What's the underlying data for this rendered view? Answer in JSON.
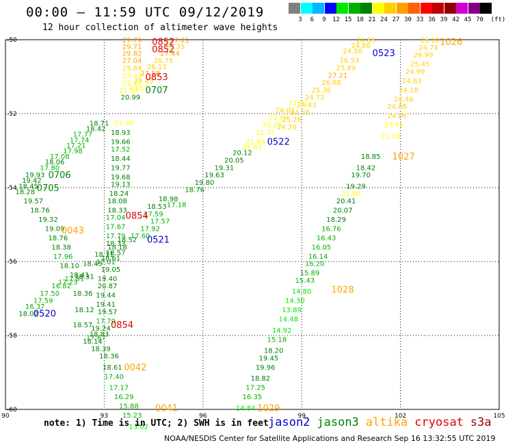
{
  "title": "00:00 – 11:59 UTC 09/12/2019",
  "subtitle": "12 hour collection of altimeter wave heights",
  "scale": {
    "unit": "(ft)",
    "bins": [
      {
        "label": "3",
        "color": "#808080"
      },
      {
        "label": "6",
        "color": "#00ffff"
      },
      {
        "label": "9",
        "color": "#00b8ff"
      },
      {
        "label": "12",
        "color": "#0000ff"
      },
      {
        "label": "15",
        "color": "#00e800"
      },
      {
        "label": "18",
        "color": "#00b000"
      },
      {
        "label": "21",
        "color": "#008000"
      },
      {
        "label": "24",
        "color": "#ffff00"
      },
      {
        "label": "27",
        "color": "#ffd000"
      },
      {
        "label": "30",
        "color": "#ffa000"
      },
      {
        "label": "33",
        "color": "#ff6000"
      },
      {
        "label": "36",
        "color": "#ff0000"
      },
      {
        "label": "39",
        "color": "#c00000"
      },
      {
        "label": "42",
        "color": "#900000"
      },
      {
        "label": "45",
        "color": "#d000d0"
      },
      {
        "label": "70",
        "color": "#800080"
      },
      {
        "label": "",
        "color": "#000000"
      }
    ]
  },
  "axes": {
    "lon_ticks": [
      "90",
      "93",
      "96",
      "99",
      "102",
      "105"
    ],
    "lat_ticks": [
      "-50",
      "-52",
      "-54",
      "-56",
      "-58",
      "-60"
    ],
    "lon_range": [
      90,
      105
    ],
    "lat_range": [
      -60,
      -50
    ]
  },
  "note": "note: 1) Time is in UTC; 2) SWH is in feet",
  "legend": [
    {
      "label": "jason2",
      "color": "#0000cc"
    },
    {
      "label": "jason3",
      "color": "#008000"
    },
    {
      "label": "altika",
      "color": "#ffa000"
    },
    {
      "label": "cryosat",
      "color": "#e00000"
    },
    {
      "label": "s3a",
      "color": "#990000"
    }
  ],
  "footer": "NOAA/NESDIS Center for Satellite Applications and Research   Sep 16 13:32:55 UTC 2019",
  "time_labels": [
    {
      "text": "0852",
      "lon": 94.45,
      "lat": -50.05,
      "color": "#e00000"
    },
    {
      "text": "0852",
      "lon": 94.45,
      "lat": -50.25,
      "color": "#e00000"
    },
    {
      "text": "0853",
      "lon": 94.25,
      "lat": -51.0,
      "color": "#e00000"
    },
    {
      "text": "0707",
      "lon": 94.25,
      "lat": -51.35,
      "color": "#008000"
    },
    {
      "text": "0706",
      "lon": 91.3,
      "lat": -53.65,
      "color": "#008000"
    },
    {
      "text": "0705",
      "lon": 90.95,
      "lat": -54.0,
      "color": "#008000"
    },
    {
      "text": "0043",
      "lon": 91.7,
      "lat": -55.15,
      "color": "#ffa000"
    },
    {
      "text": "0854",
      "lon": 93.65,
      "lat": -54.75,
      "color": "#e00000"
    },
    {
      "text": "0521",
      "lon": 94.3,
      "lat": -55.4,
      "color": "#0000cc"
    },
    {
      "text": "0520",
      "lon": 90.85,
      "lat": -57.4,
      "color": "#0000cc"
    },
    {
      "text": "0854",
      "lon": 93.2,
      "lat": -57.7,
      "color": "#e00000"
    },
    {
      "text": "0042",
      "lon": 93.6,
      "lat": -58.85,
      "color": "#ffa000"
    },
    {
      "text": "0041",
      "lon": 94.55,
      "lat": -59.95,
      "color": "#ffa000"
    },
    {
      "text": "0522",
      "lon": 97.95,
      "lat": -52.75,
      "color": "#0000cc"
    },
    {
      "text": "0523",
      "lon": 101.15,
      "lat": -50.35,
      "color": "#0000cc"
    },
    {
      "text": "1026",
      "lon": 103.2,
      "lat": -50.05,
      "color": "#ffa000"
    },
    {
      "text": "1027",
      "lon": 101.75,
      "lat": -53.15,
      "color": "#ffa000"
    },
    {
      "text": "1028",
      "lon": 99.9,
      "lat": -56.75,
      "color": "#ffa000"
    },
    {
      "text": "1029",
      "lon": 97.65,
      "lat": -59.95,
      "color": "#ffa000"
    }
  ],
  "tracks": [
    {
      "name": "track-cryosat-upper",
      "start": [
        93.75,
        -50.5
      ],
      "end": [
        95.1,
        -50.0
      ],
      "values": [
        "27.79",
        "29.71",
        "29.82",
        "27.04",
        "25.84",
        "23.43",
        "22.21",
        "21.53",
        "20.99"
      ],
      "pos": [
        [
          93.55,
          -50.0
        ],
        [
          93.55,
          -50.18
        ],
        [
          93.55,
          -50.36
        ],
        [
          93.55,
          -50.56
        ],
        [
          93.55,
          -50.76
        ],
        [
          93.55,
          -50.96
        ],
        [
          93.55,
          -51.16
        ],
        [
          93.45,
          -51.36
        ],
        [
          93.5,
          -51.55
        ]
      ]
    },
    {
      "name": "track-cryosat-upper-b",
      "values": [
        "27.21",
        "25.35",
        "27.44",
        "26.75",
        "26.13",
        "27.58",
        "25.45",
        "23.07"
      ],
      "pos": [
        [
          95.0,
          -50.0
        ],
        [
          94.85,
          -50.18
        ],
        [
          94.7,
          -50.36
        ],
        [
          94.5,
          -50.56
        ],
        [
          94.3,
          -50.72
        ],
        [
          94.1,
          -50.9
        ],
        [
          93.9,
          -51.1
        ],
        [
          93.75,
          -51.3
        ]
      ]
    },
    {
      "name": "track-jason3-west",
      "values": [
        "18.71",
        "18.42",
        "17.77",
        "17.74",
        "17.21",
        "17.98",
        "17.08",
        "18.06",
        "17.80",
        "19.93",
        "19.42",
        "18.45",
        "18.28"
      ],
      "pos": [
        [
          92.55,
          -52.25
        ],
        [
          92.45,
          -52.4
        ],
        [
          92.05,
          -52.55
        ],
        [
          91.95,
          -52.7
        ],
        [
          91.85,
          -52.85
        ],
        [
          91.75,
          -53.0
        ],
        [
          91.35,
          -53.15
        ],
        [
          91.2,
          -53.3
        ],
        [
          91.05,
          -53.45
        ],
        [
          90.6,
          -53.65
        ],
        [
          90.5,
          -53.8
        ],
        [
          90.4,
          -53.95
        ],
        [
          90.3,
          -54.1
        ]
      ]
    },
    {
      "name": "track-jason3-west-b",
      "values": [
        "19.57",
        "18.76",
        "19.32",
        "19.09",
        "18.76",
        "18.38",
        "17.96",
        "18.10",
        "18.41",
        "17.51",
        "17.23",
        "16.82",
        "17.50",
        "17.59",
        "16.37",
        "18.02"
      ],
      "pos": [
        [
          90.55,
          -54.35
        ],
        [
          90.75,
          -54.6
        ],
        [
          91.0,
          -54.85
        ],
        [
          91.2,
          -55.1
        ],
        [
          91.3,
          -55.35
        ],
        [
          91.4,
          -55.6
        ],
        [
          91.45,
          -55.85
        ],
        [
          91.65,
          -56.1
        ],
        [
          91.95,
          -56.35
        ],
        [
          91.8,
          -56.45
        ],
        [
          91.6,
          -56.55
        ],
        [
          91.4,
          -56.65
        ],
        [
          91.05,
          -56.85
        ],
        [
          90.85,
          -57.05
        ],
        [
          90.6,
          -57.2
        ],
        [
          90.4,
          -57.4
        ]
      ]
    },
    {
      "name": "track-jason3-mid",
      "values": [
        "21.39",
        "18.93",
        "19.66",
        "17.52",
        "18.44",
        "19.77",
        "19.68",
        "19.13",
        "18.24",
        "18.08",
        "18.33",
        "17.04",
        "17.67",
        "17.79",
        "18.33",
        "18.57",
        "18.61",
        "17.01",
        "19.05",
        "19.40",
        "20.87",
        "19.44",
        "19.41",
        "19.57",
        "17.79",
        "19.24",
        "18.83",
        "17.67",
        "18.14",
        "18.39",
        "18.36",
        "18.61",
        "17.40",
        "17.17",
        "16.29",
        "15.88",
        "15.23",
        "13.02"
      ],
      "pos": [
        [
          93.3,
          -52.25
        ],
        [
          93.2,
          -52.5
        ],
        [
          93.2,
          -52.75
        ],
        [
          93.2,
          -52.95
        ],
        [
          93.2,
          -53.2
        ],
        [
          93.2,
          -53.45
        ],
        [
          93.2,
          -53.7
        ],
        [
          93.2,
          -53.9
        ],
        [
          93.15,
          -54.15
        ],
        [
          93.1,
          -54.35
        ],
        [
          93.1,
          -54.6
        ],
        [
          93.05,
          -54.8
        ],
        [
          93.05,
          -55.05
        ],
        [
          93.05,
          -55.3
        ],
        [
          93.05,
          -55.5
        ],
        [
          93.05,
          -55.75
        ],
        [
          92.9,
          -55.9
        ],
        [
          92.75,
          -56.0
        ],
        [
          92.9,
          -56.2
        ],
        [
          92.8,
          -56.45
        ],
        [
          92.8,
          -56.65
        ],
        [
          92.75,
          -56.9
        ],
        [
          92.75,
          -57.15
        ],
        [
          92.8,
          -57.35
        ],
        [
          92.75,
          -57.6
        ],
        [
          92.6,
          -57.8
        ],
        [
          92.55,
          -57.95
        ],
        [
          92.45,
          -58.05
        ],
        [
          92.35,
          -58.15
        ],
        [
          92.6,
          -58.35
        ],
        [
          92.85,
          -58.55
        ],
        [
          92.95,
          -58.85
        ],
        [
          93.0,
          -59.1
        ],
        [
          93.15,
          -59.4
        ],
        [
          93.3,
          -59.65
        ],
        [
          93.45,
          -59.9
        ],
        [
          93.55,
          -60.15
        ],
        [
          93.75,
          -60.45
        ]
      ]
    },
    {
      "name": "track-jason3-center",
      "values": [
        "18.98",
        "18.53",
        "17.59",
        "17.18",
        "17.57",
        "17.92",
        "17.60",
        "18.52",
        "18.18",
        "18.11",
        "18.45",
        "18.31",
        "18.36",
        "18.12",
        "18.57"
      ],
      "pos": [
        [
          94.65,
          -54.3
        ],
        [
          94.3,
          -54.5
        ],
        [
          94.2,
          -54.7
        ],
        [
          94.9,
          -54.45
        ],
        [
          94.4,
          -54.9
        ],
        [
          94.1,
          -55.1
        ],
        [
          93.8,
          -55.3
        ],
        [
          93.4,
          -55.4
        ],
        [
          93.1,
          -55.6
        ],
        [
          92.7,
          -55.8
        ],
        [
          92.35,
          -56.05
        ],
        [
          92.1,
          -56.4
        ],
        [
          92.05,
          -56.85
        ],
        [
          92.1,
          -57.3
        ],
        [
          92.05,
          -57.7
        ]
      ]
    },
    {
      "name": "track-jason2-mid",
      "values": [
        "20.12",
        "20.05",
        "19.31",
        "19.63",
        "19.80",
        "18.76",
        "21.64",
        "21.69",
        "22.71",
        "22.20",
        "23.80",
        "24.02",
        "22.73"
      ],
      "pos": [
        [
          96.9,
          -53.05
        ],
        [
          96.65,
          -53.25
        ],
        [
          96.35,
          -53.45
        ],
        [
          96.05,
          -53.65
        ],
        [
          95.75,
          -53.85
        ],
        [
          95.45,
          -54.05
        ],
        [
          97.2,
          -52.9
        ],
        [
          97.3,
          -52.75
        ],
        [
          97.6,
          -52.5
        ],
        [
          97.8,
          -52.3
        ],
        [
          98.0,
          -52.1
        ],
        [
          98.2,
          -51.9
        ],
        [
          98.6,
          -51.7
        ]
      ]
    },
    {
      "name": "track-altika-center",
      "values": [
        "24.83",
        "24.86",
        "24.50",
        "26.53",
        "25.89",
        "27.21",
        "26.88",
        "25.36",
        "24.72",
        "24.43",
        "24.38",
        "25.26",
        "24.20"
      ],
      "pos": [
        [
          100.65,
          -50.0
        ],
        [
          100.5,
          -50.15
        ],
        [
          100.25,
          -50.3
        ],
        [
          100.15,
          -50.55
        ],
        [
          100.05,
          -50.75
        ],
        [
          99.8,
          -50.95
        ],
        [
          99.6,
          -51.15
        ],
        [
          99.3,
          -51.35
        ],
        [
          99.1,
          -51.55
        ],
        [
          98.85,
          -51.75
        ],
        [
          98.65,
          -51.95
        ],
        [
          98.4,
          -52.15
        ],
        [
          98.25,
          -52.35
        ]
      ]
    },
    {
      "name": "track-jason3-east",
      "values": [
        "18.85",
        "18.42",
        "19.70",
        "19.29",
        "21.00",
        "20.41",
        "20.07",
        "18.29",
        "16.76",
        "16.43",
        "16.05",
        "16.14",
        "16.20",
        "15.89",
        "15.43",
        "14.80",
        "14.30",
        "13.89",
        "14.48",
        "14.92",
        "15.18",
        "18.20",
        "19.45",
        "19.96",
        "18.82",
        "17.25",
        "16.35",
        "14.84"
      ],
      "pos": [
        [
          100.8,
          -53.15
        ],
        [
          100.65,
          -53.45
        ],
        [
          100.5,
          -53.65
        ],
        [
          100.35,
          -53.95
        ],
        [
          100.2,
          -54.15
        ],
        [
          100.05,
          -54.35
        ],
        [
          99.95,
          -54.6
        ],
        [
          99.75,
          -54.85
        ],
        [
          99.6,
          -55.1
        ],
        [
          99.45,
          -55.35
        ],
        [
          99.3,
          -55.6
        ],
        [
          99.2,
          -55.85
        ],
        [
          99.1,
          -56.05
        ],
        [
          98.95,
          -56.3
        ],
        [
          98.8,
          -56.5
        ],
        [
          98.7,
          -56.8
        ],
        [
          98.5,
          -57.05
        ],
        [
          98.4,
          -57.3
        ],
        [
          98.3,
          -57.55
        ],
        [
          98.1,
          -57.85
        ],
        [
          97.95,
          -58.1
        ],
        [
          97.85,
          -58.4
        ],
        [
          97.7,
          -58.6
        ],
        [
          97.6,
          -58.85
        ],
        [
          97.45,
          -59.15
        ],
        [
          97.3,
          -59.4
        ],
        [
          97.2,
          -59.65
        ],
        [
          97.0,
          -59.95
        ]
      ]
    },
    {
      "name": "track-altika-east",
      "values": [
        "26.10",
        "24.74",
        "26.99",
        "25.45",
        "24.99",
        "24.83",
        "24.18",
        "24.46",
        "24.08",
        "24.06",
        "23.41",
        "21.24"
      ],
      "pos": [
        [
          102.6,
          -50.0
        ],
        [
          102.55,
          -50.2
        ],
        [
          102.4,
          -50.4
        ],
        [
          102.3,
          -50.65
        ],
        [
          102.15,
          -50.85
        ],
        [
          102.05,
          -51.1
        ],
        [
          101.95,
          -51.35
        ],
        [
          101.8,
          -51.6
        ],
        [
          101.6,
          -51.8
        ],
        [
          101.6,
          -52.05
        ],
        [
          101.5,
          -52.3
        ],
        [
          101.4,
          -52.6
        ]
      ]
    }
  ]
}
